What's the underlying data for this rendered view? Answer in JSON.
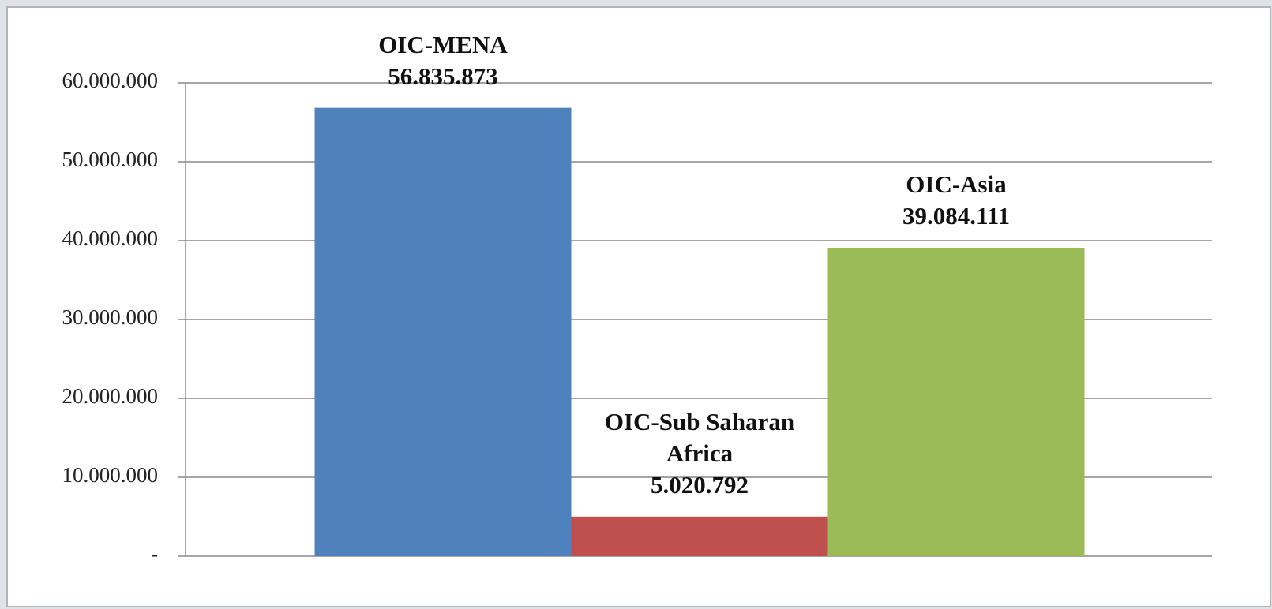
{
  "chart_data": {
    "type": "bar",
    "categories": [
      "OIC-MENA",
      "OIC-Sub Saharan Africa",
      "OIC-Asia"
    ],
    "values": [
      56835873,
      5020792,
      39084111
    ],
    "value_labels": [
      "56.835.873",
      "5.020.792",
      "39.084.111"
    ],
    "colors": [
      "#4f81bd",
      "#c0504d",
      "#9bbb59"
    ],
    "ylim": [
      0,
      60000000
    ],
    "yticks": [
      {
        "value": 0,
        "label": "-"
      },
      {
        "value": 10000000,
        "label": "10.000.000"
      },
      {
        "value": 20000000,
        "label": "20.000.000"
      },
      {
        "value": 30000000,
        "label": "30.000.000"
      },
      {
        "value": 40000000,
        "label": "40.000.000"
      },
      {
        "value": 50000000,
        "label": "50.000.000"
      },
      {
        "value": 60000000,
        "label": "60.000.000"
      }
    ],
    "grid": true
  }
}
